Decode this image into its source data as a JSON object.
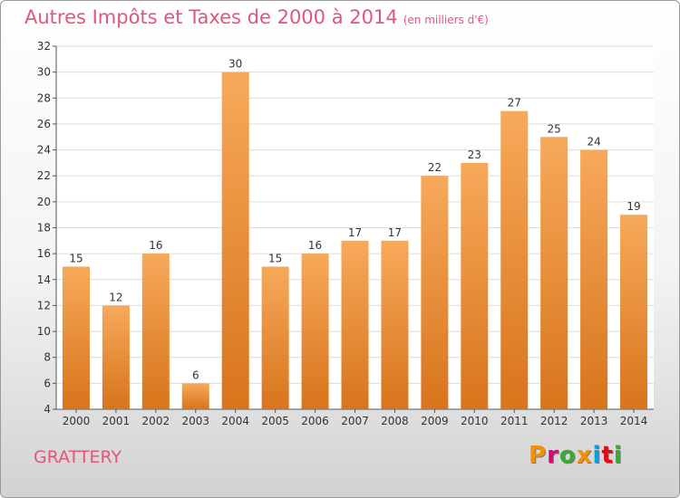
{
  "header": {
    "title": "Autres Impôts et Taxes de 2000 à 2014",
    "unit": "(en milliers d'€)"
  },
  "footer": {
    "commune": "GRATTERY",
    "logo_text": "Proxiti",
    "logo_colors": [
      "#f39200",
      "#e2007a",
      "#3aaa35",
      "#f39200",
      "#009fe3",
      "#e30613",
      "#3aaa35"
    ]
  },
  "colors": {
    "bar_top": "#f7a95a",
    "bar_bottom": "#d8741c",
    "title": "#e2567a",
    "grid": "#dcdcdc"
  },
  "chart_data": {
    "type": "bar",
    "categories": [
      "2000",
      "2001",
      "2002",
      "2003",
      "2004",
      "2005",
      "2006",
      "2007",
      "2008",
      "2009",
      "2010",
      "2011",
      "2012",
      "2013",
      "2014"
    ],
    "values": [
      15,
      12,
      16,
      6,
      30,
      15,
      16,
      17,
      17,
      22,
      23,
      27,
      25,
      24,
      19
    ],
    "ylim": [
      4,
      32
    ],
    "yticks": [
      4,
      6,
      8,
      10,
      12,
      14,
      16,
      18,
      20,
      22,
      24,
      26,
      28,
      30,
      32
    ],
    "grid": true,
    "data_labels": true
  }
}
